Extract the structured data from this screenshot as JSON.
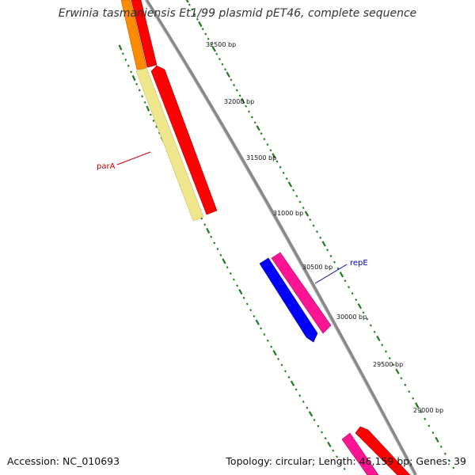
{
  "title": "Erwinia tasmaniensis Et1/99 plasmid pET46, complete sequence",
  "footer": {
    "accession": "Accession: NC_010693",
    "summary": "Topology: circular; Length: 46,159 bp; Genes: 39"
  },
  "ticks": [
    "32500 bp",
    "32000 bp",
    "31500 bp",
    "31000 bp",
    "30500 bp",
    "30000 bp",
    "29500 bp",
    "29000 bp"
  ],
  "gene_labels": [
    {
      "text": "parA",
      "color": "#cc0000"
    },
    {
      "text": "repE",
      "color": "#0000cc"
    }
  ],
  "colors": {
    "backbone": "#888888",
    "tick": "#1e7a1e",
    "gene_forward": "#ff0000",
    "gene_reverse_orange": "#ff8c00",
    "gene_reverse_pale": "#f0e68c",
    "gene_blue": "#0000ff",
    "gene_pink": "#ff1493"
  }
}
